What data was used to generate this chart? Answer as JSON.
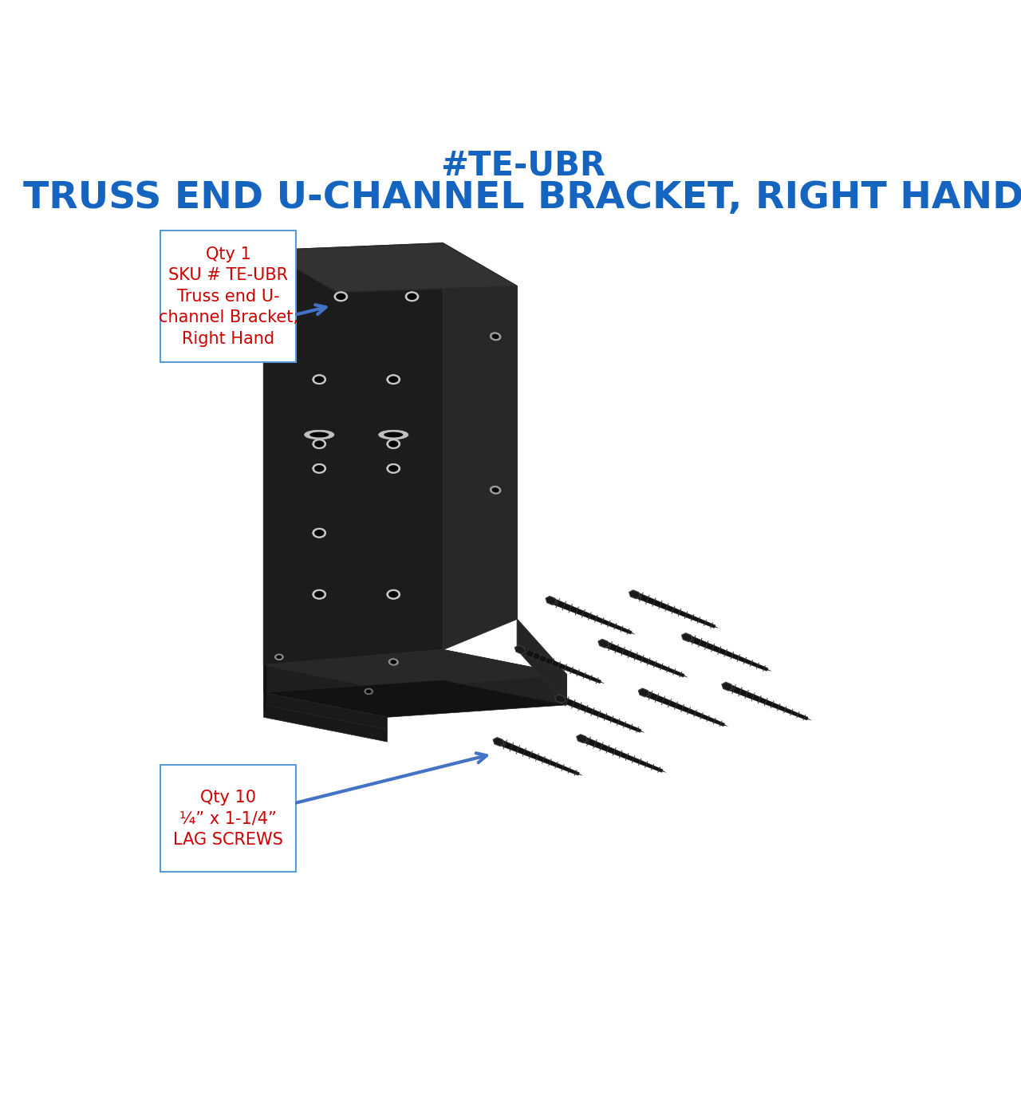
{
  "title_line1": "#TE-UBR",
  "title_line2": "TRUSS END U-CHANNEL BRACKET, RIGHT HAND",
  "title_color": "#1565C0",
  "title_fontsize1": 30,
  "title_fontsize2": 34,
  "background_color": "#ffffff",
  "callout1_text": "Qty 1\nSKU # TE-UBR\nTruss end U-\nchannel Bracket,\nRight Hand",
  "callout1_color": "#cc0000",
  "callout1_fontsize": 15,
  "callout2_text": "Qty 10\n¼” x 1-1/4”\nLAG SCREWS",
  "callout2_color": "#cc0000",
  "callout2_fontsize": 15,
  "arrow_color": "#4472C4",
  "bracket_front": "#1c1c1c",
  "bracket_right": "#282828",
  "bracket_top": "#323232",
  "bracket_channel_inner": "#0a0a0a",
  "hole_light": "#c0c0c0",
  "hole_dark": "#080808",
  "screw_body": "#151515",
  "screw_edge": "#3a3a3a"
}
